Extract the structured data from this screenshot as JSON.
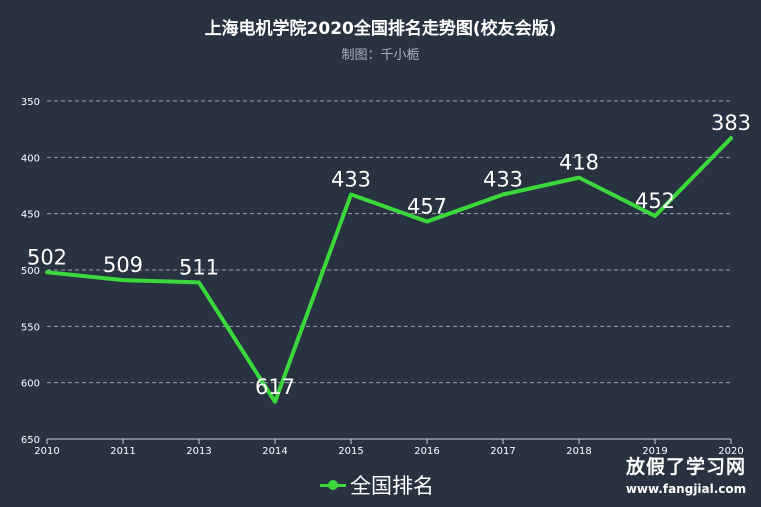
{
  "chart_data": {
    "type": "line",
    "title": "上海电机学院2020全国排名走势图(校友会版)",
    "subtitle": "制图：千小栀",
    "categories": [
      "2010",
      "2011",
      "2013",
      "2014",
      "2015",
      "2016",
      "2017",
      "2018",
      "2019",
      "2020"
    ],
    "series": [
      {
        "name": "全国排名",
        "values": [
          502,
          509,
          511,
          617,
          433,
          457,
          433,
          418,
          452,
          383
        ],
        "color": "#3bd83b"
      }
    ],
    "y_axis": {
      "ticks": [
        350,
        400,
        450,
        500,
        550,
        600,
        650
      ],
      "ylim": [
        350,
        650
      ],
      "inverted": true
    },
    "grid": true,
    "legend_position": "bottom-center"
  },
  "watermark": {
    "main": "放假了学习网",
    "sub": "www.fangjial.com"
  },
  "colors": {
    "background": "#283241",
    "line": "#3bd83b",
    "grid": "#9aa3ad",
    "text": "#ffffff"
  }
}
